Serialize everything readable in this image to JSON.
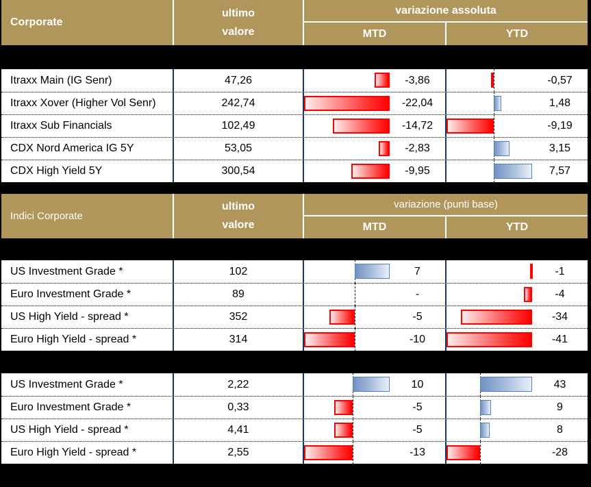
{
  "colors": {
    "header_bg": "#B0965A",
    "header_text": "#FFFFFF",
    "separator_band": "#000000",
    "row_bg": "#FFFFFF",
    "column_divider": "#17375E",
    "negative_bar_border": "#FF0000",
    "negative_bar_fill_start": "#FFECEC",
    "negative_bar_fill_end": "#FF0000",
    "positive_bar_border": "#4F81BD",
    "positive_bar_fill_start": "#7291C4",
    "positive_bar_fill_end": "#EAF0F8",
    "zero_axis": "#000000"
  },
  "sections": [
    {
      "header": {
        "title": "Corporate",
        "value_line1": "ultimo",
        "value_line2": "valore",
        "change_title": "variazione assoluta",
        "mtd": "MTD",
        "ytd": "YTD"
      },
      "mtd_range": {
        "min": -22.04,
        "max": 0
      },
      "ytd_range": {
        "min": -9.19,
        "max": 7.57
      },
      "rows": [
        {
          "name": "Itraxx Main (IG Senr)",
          "value": "47,26",
          "mtd": -3.86,
          "mtd_label": "-3,86",
          "ytd": -0.57,
          "ytd_label": "-0,57"
        },
        {
          "name": "Itraxx Xover (Higher Vol Senr)",
          "value": "242,74",
          "mtd": -22.04,
          "mtd_label": "-22,04",
          "ytd": 1.48,
          "ytd_label": "1,48"
        },
        {
          "name": "Itraxx Sub Financials",
          "value": "102,49",
          "mtd": -14.72,
          "mtd_label": "-14,72",
          "ytd": -9.19,
          "ytd_label": "-9,19"
        },
        {
          "name": "CDX Nord America IG 5Y",
          "value": "53,05",
          "mtd": -2.83,
          "mtd_label": "-2,83",
          "ytd": 3.15,
          "ytd_label": "3,15"
        },
        {
          "name": "CDX High Yield 5Y",
          "value": "300,54",
          "mtd": -9.95,
          "mtd_label": "-9,95",
          "ytd": 7.57,
          "ytd_label": "7,57"
        }
      ]
    },
    {
      "header": {
        "title": "Indici Corporate",
        "value_line1": "ultimo",
        "value_line2": "valore",
        "change_title": "variazione (punti base)",
        "mtd": "MTD",
        "ytd": "YTD"
      },
      "mtd_range": {
        "min": -10,
        "max": 7
      },
      "ytd_range": {
        "min": -41,
        "max": 0
      },
      "rows": [
        {
          "name": "US Investment Grade *",
          "value": "102",
          "mtd": 7,
          "mtd_label": "7",
          "ytd": -1,
          "ytd_label": "-1"
        },
        {
          "name": "Euro Investment Grade *",
          "value": "89",
          "mtd": null,
          "mtd_label": "-",
          "ytd": -4,
          "ytd_label": "-4"
        },
        {
          "name": "US High Yield  - spread *",
          "value": "352",
          "mtd": -5,
          "mtd_label": "-5",
          "ytd": -34,
          "ytd_label": "-34"
        },
        {
          "name": "Euro High Yield  - spread *",
          "value": "314",
          "mtd": -10,
          "mtd_label": "-10",
          "ytd": -41,
          "ytd_label": "-41"
        }
      ]
    },
    {
      "header": null,
      "mtd_range": {
        "min": -13,
        "max": 10
      },
      "ytd_range": {
        "min": -28,
        "max": 43
      },
      "rows": [
        {
          "name": "US Investment Grade *",
          "value": "2,22",
          "mtd": 10,
          "mtd_label": "10",
          "ytd": 43,
          "ytd_label": "43"
        },
        {
          "name": "Euro Investment Grade *",
          "value": "0,33",
          "mtd": -5,
          "mtd_label": "-5",
          "ytd": 9,
          "ytd_label": "9"
        },
        {
          "name": "US High Yield  - spread *",
          "value": "4,41",
          "mtd": -5,
          "mtd_label": "-5",
          "ytd": 8,
          "ytd_label": "8"
        },
        {
          "name": "Euro High Yield  - spread *",
          "value": "2,55",
          "mtd": -13,
          "mtd_label": "-13",
          "ytd": -28,
          "ytd_label": "-28"
        }
      ]
    }
  ],
  "chart_data": [
    {
      "type": "table",
      "title": "Corporate",
      "columns": [
        "Corporate",
        "ultimo valore",
        "variazione assoluta MTD",
        "variazione assoluta YTD"
      ],
      "rows": [
        [
          "Itraxx Main (IG Senr)",
          47.26,
          -3.86,
          -0.57
        ],
        [
          "Itraxx Xover (Higher Vol Senr)",
          242.74,
          -22.04,
          1.48
        ],
        [
          "Itraxx Sub Financials",
          102.49,
          -14.72,
          -9.19
        ],
        [
          "CDX Nord America IG 5Y",
          53.05,
          -2.83,
          3.15
        ],
        [
          "CDX High Yield 5Y",
          300.54,
          -9.95,
          7.57
        ]
      ],
      "bar_columns": {
        "MTD": {
          "min": -22.04,
          "max": 0
        },
        "YTD": {
          "min": -9.19,
          "max": 7.57
        }
      },
      "bar_style": "in-cell gradient data bars: red = negative, blue = positive, dashed zero axis"
    },
    {
      "type": "table",
      "title": "Indici Corporate (spread)",
      "columns": [
        "Indici Corporate",
        "ultimo valore",
        "variazione (punti base) MTD",
        "variazione (punti base) YTD"
      ],
      "rows": [
        [
          "US Investment Grade *",
          102,
          7,
          -1
        ],
        [
          "Euro Investment Grade *",
          89,
          null,
          -4
        ],
        [
          "US High Yield - spread *",
          352,
          -5,
          -34
        ],
        [
          "Euro High Yield - spread *",
          314,
          -10,
          -41
        ]
      ],
      "bar_columns": {
        "MTD": {
          "min": -10,
          "max": 7
        },
        "YTD": {
          "min": -41,
          "max": 0
        }
      },
      "bar_style": "in-cell gradient data bars: red = negative, blue = positive, dashed zero axis"
    },
    {
      "type": "table",
      "title": "Indici Corporate (livelli)",
      "columns": [
        "Indici Corporate",
        "ultimo valore",
        "variazione MTD",
        "variazione YTD"
      ],
      "rows": [
        [
          "US Investment Grade *",
          2.22,
          10,
          43
        ],
        [
          "Euro Investment Grade *",
          0.33,
          -5,
          9
        ],
        [
          "US High Yield - spread *",
          4.41,
          -5,
          8
        ],
        [
          "Euro High Yield - spread *",
          2.55,
          -13,
          -28
        ]
      ],
      "bar_columns": {
        "MTD": {
          "min": -13,
          "max": 10
        },
        "YTD": {
          "min": -28,
          "max": 43
        }
      },
      "bar_style": "in-cell gradient data bars: red = negative, blue = positive, dashed zero axis"
    }
  ]
}
